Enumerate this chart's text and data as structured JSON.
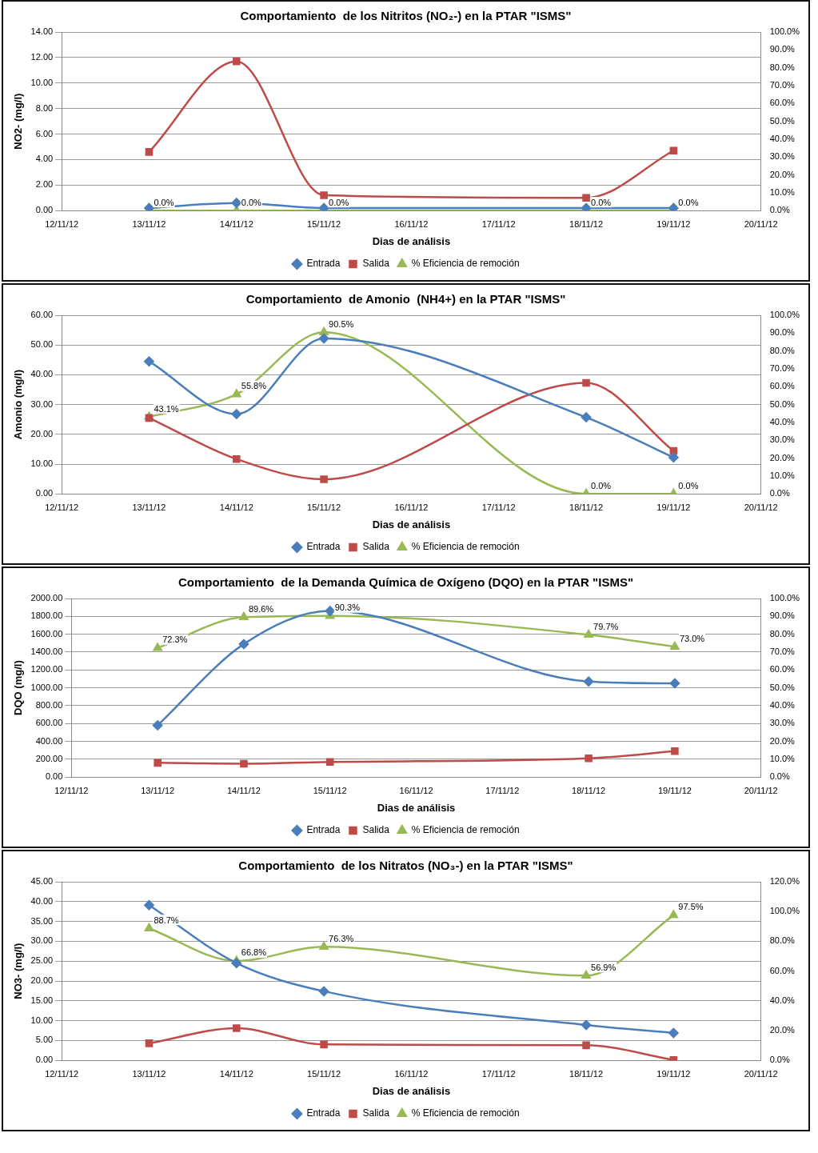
{
  "chart_data": [
    {
      "type": "line",
      "title": "Comportamiento  de los Nitritos (NO₂-) en la PTAR \"ISMS\"",
      "xlabel": "Dias de análisis",
      "ylabel": "NO2- (mg/l)",
      "categories": [
        "12/11/12",
        "13/11/12",
        "14/11/12",
        "15/11/12",
        "16/11/12",
        "17/11/12",
        "18/11/12",
        "19/11/12",
        "20/11/12"
      ],
      "series": [
        {
          "name": "Entrada",
          "color": "#4a7ebb",
          "marker": "diamond",
          "values": [
            null,
            0.2,
            0.6,
            0.2,
            null,
            null,
            0.2,
            0.2,
            null
          ]
        },
        {
          "name": "Salida",
          "color": "#be4b48",
          "marker": "square",
          "values": [
            null,
            4.6,
            11.7,
            1.2,
            null,
            null,
            1.0,
            4.7,
            null
          ]
        },
        {
          "name": "% Eficiencia de remoción",
          "color": "#98b954",
          "marker": "triangle",
          "axis": "y2",
          "values": [
            null,
            0,
            0,
            0,
            null,
            null,
            0,
            0,
            null
          ],
          "value_labels": [
            null,
            "0.0%",
            "0.0%",
            "0.0%",
            null,
            null,
            "0.0%",
            "0.0%",
            null
          ]
        }
      ],
      "ylim": [
        0,
        14
      ],
      "yticks": [
        {
          "value": 0,
          "label": "0.00"
        },
        {
          "value": 2,
          "label": "2.00"
        },
        {
          "value": 4,
          "label": "4.00"
        },
        {
          "value": 6,
          "label": "6.00"
        },
        {
          "value": 8,
          "label": "8.00"
        },
        {
          "value": 10,
          "label": "10.00"
        },
        {
          "value": 12,
          "label": "12.00"
        },
        {
          "value": 14,
          "label": "14.00"
        }
      ],
      "y2lim": [
        0,
        100
      ],
      "y2ticks": [
        {
          "value": 0,
          "label": "0.0%"
        },
        {
          "value": 10,
          "label": "10.0%"
        },
        {
          "value": 20,
          "label": "20.0%"
        },
        {
          "value": 30,
          "label": "30.0%"
        },
        {
          "value": 40,
          "label": "40.0%"
        },
        {
          "value": 50,
          "label": "50.0%"
        },
        {
          "value": 60,
          "label": "60.0%"
        },
        {
          "value": 70,
          "label": "70.0%"
        },
        {
          "value": 80,
          "label": "80.0%"
        },
        {
          "value": 90,
          "label": "90.0%"
        },
        {
          "value": 100,
          "label": "100.0%"
        }
      ],
      "grid": "y",
      "legend": "bottom"
    },
    {
      "type": "line",
      "title": "Comportamiento  de Amonio  (NH4+) en la PTAR \"ISMS\"",
      "xlabel": "Dias de análisis",
      "ylabel": "Amonio (mg/l)",
      "categories": [
        "12/11/12",
        "13/11/12",
        "14/11/12",
        "15/11/12",
        "16/11/12",
        "17/11/12",
        "18/11/12",
        "19/11/12",
        "20/11/12"
      ],
      "series": [
        {
          "name": "Entrada",
          "color": "#4a7ebb",
          "marker": "diamond",
          "values": [
            null,
            44.5,
            26.8,
            52.2,
            null,
            null,
            25.7,
            12.2,
            null
          ]
        },
        {
          "name": "Salida",
          "color": "#be4b48",
          "marker": "square",
          "values": [
            null,
            25.5,
            11.7,
            4.9,
            null,
            null,
            37.3,
            14.4,
            null
          ]
        },
        {
          "name": "% Eficiencia de remoción",
          "color": "#98b954",
          "marker": "triangle",
          "axis": "y2",
          "values": [
            null,
            43.1,
            55.8,
            90.5,
            null,
            null,
            0,
            0,
            null
          ],
          "value_labels": [
            null,
            "43.1%",
            "55.8%",
            "90.5%",
            null,
            null,
            "0.0%",
            "0.0%",
            null
          ]
        }
      ],
      "ylim": [
        0,
        60
      ],
      "yticks": [
        {
          "value": 0,
          "label": "0.00"
        },
        {
          "value": 10,
          "label": "10.00"
        },
        {
          "value": 20,
          "label": "20.00"
        },
        {
          "value": 30,
          "label": "30.00"
        },
        {
          "value": 40,
          "label": "40.00"
        },
        {
          "value": 50,
          "label": "50.00"
        },
        {
          "value": 60,
          "label": "60.00"
        }
      ],
      "y2lim": [
        0,
        100
      ],
      "y2ticks": [
        {
          "value": 0,
          "label": "0.0%"
        },
        {
          "value": 10,
          "label": "10.0%"
        },
        {
          "value": 20,
          "label": "20.0%"
        },
        {
          "value": 30,
          "label": "30.0%"
        },
        {
          "value": 40,
          "label": "40.0%"
        },
        {
          "value": 50,
          "label": "50.0%"
        },
        {
          "value": 60,
          "label": "60.0%"
        },
        {
          "value": 70,
          "label": "70.0%"
        },
        {
          "value": 80,
          "label": "80.0%"
        },
        {
          "value": 90,
          "label": "90.0%"
        },
        {
          "value": 100,
          "label": "100.0%"
        }
      ],
      "grid": "y",
      "legend": "bottom"
    },
    {
      "type": "line",
      "title": "Comportamiento  de la Demanda Química de Oxígeno (DQO) en la PTAR \"ISMS\"",
      "xlabel": "Dias de análisis",
      "ylabel": "DQO (mg/l)",
      "categories": [
        "12/11/12",
        "13/11/12",
        "14/11/12",
        "15/11/12",
        "16/11/12",
        "17/11/12",
        "18/11/12",
        "19/11/12",
        "20/11/12"
      ],
      "series": [
        {
          "name": "Entrada",
          "color": "#4a7ebb",
          "marker": "diamond",
          "values": [
            null,
            580,
            1490,
            1860,
            null,
            null,
            1070,
            1050,
            null
          ]
        },
        {
          "name": "Salida",
          "color": "#be4b48",
          "marker": "square",
          "values": [
            null,
            160,
            150,
            170,
            null,
            null,
            210,
            290,
            null
          ]
        },
        {
          "name": "% Eficiencia de remoción",
          "color": "#98b954",
          "marker": "triangle",
          "axis": "y2",
          "values": [
            null,
            72.3,
            89.6,
            90.3,
            null,
            null,
            79.7,
            73.0,
            null
          ],
          "value_labels": [
            null,
            "72.3%",
            "89.6%",
            "90.3%",
            null,
            null,
            "79.7%",
            "73.0%",
            null
          ]
        }
      ],
      "ylim": [
        0,
        2000
      ],
      "yticks": [
        {
          "value": 0,
          "label": "0.00"
        },
        {
          "value": 200,
          "label": "200.00"
        },
        {
          "value": 400,
          "label": "400.00"
        },
        {
          "value": 600,
          "label": "600.00"
        },
        {
          "value": 800,
          "label": "800.00"
        },
        {
          "value": 1000,
          "label": "1000.00"
        },
        {
          "value": 1200,
          "label": "1200.00"
        },
        {
          "value": 1400,
          "label": "1400.00"
        },
        {
          "value": 1600,
          "label": "1600.00"
        },
        {
          "value": 1800,
          "label": "1800.00"
        },
        {
          "value": 2000,
          "label": "2000.00"
        }
      ],
      "y2lim": [
        0,
        100
      ],
      "y2ticks": [
        {
          "value": 0,
          "label": "0.0%"
        },
        {
          "value": 10,
          "label": "10.0%"
        },
        {
          "value": 20,
          "label": "20.0%"
        },
        {
          "value": 30,
          "label": "30.0%"
        },
        {
          "value": 40,
          "label": "40.0%"
        },
        {
          "value": 50,
          "label": "50.0%"
        },
        {
          "value": 60,
          "label": "60.0%"
        },
        {
          "value": 70,
          "label": "70.0%"
        },
        {
          "value": 80,
          "label": "80.0%"
        },
        {
          "value": 90,
          "label": "90.0%"
        },
        {
          "value": 100,
          "label": "100.0%"
        }
      ],
      "grid": "y",
      "legend": "bottom"
    },
    {
      "type": "line",
      "title": "Comportamiento  de los Nitratos (NO₃-) en la PTAR \"ISMS\"",
      "xlabel": "Dias de análisis",
      "ylabel": "NO3- (mg/l)",
      "categories": [
        "12/11/12",
        "13/11/12",
        "14/11/12",
        "15/11/12",
        "16/11/12",
        "17/11/12",
        "18/11/12",
        "19/11/12",
        "20/11/12"
      ],
      "series": [
        {
          "name": "Entrada",
          "color": "#4a7ebb",
          "marker": "diamond",
          "values": [
            null,
            39.1,
            24.5,
            17.4,
            null,
            null,
            8.9,
            6.9,
            null
          ]
        },
        {
          "name": "Salida",
          "color": "#be4b48",
          "marker": "square",
          "values": [
            null,
            4.3,
            8.1,
            4.0,
            null,
            null,
            3.8,
            0.1,
            null
          ]
        },
        {
          "name": "% Eficiencia de remoción",
          "color": "#98b954",
          "marker": "triangle",
          "axis": "y2",
          "values": [
            null,
            88.7,
            66.8,
            76.3,
            null,
            null,
            56.9,
            97.5,
            null
          ],
          "value_labels": [
            null,
            "88.7%",
            "66.8%",
            "76.3%",
            null,
            null,
            "56.9%",
            "97.5%",
            null
          ]
        }
      ],
      "ylim": [
        0,
        45
      ],
      "yticks": [
        {
          "value": 0,
          "label": "0.00"
        },
        {
          "value": 5,
          "label": "5.00"
        },
        {
          "value": 10,
          "label": "10.00"
        },
        {
          "value": 15,
          "label": "15.00"
        },
        {
          "value": 20,
          "label": "20.00"
        },
        {
          "value": 25,
          "label": "25.00"
        },
        {
          "value": 30,
          "label": "30.00"
        },
        {
          "value": 35,
          "label": "35.00"
        },
        {
          "value": 40,
          "label": "40.00"
        },
        {
          "value": 45,
          "label": "45.00"
        }
      ],
      "y2lim": [
        0,
        120
      ],
      "y2ticks": [
        {
          "value": 0,
          "label": "0.0%"
        },
        {
          "value": 20,
          "label": "20.0%"
        },
        {
          "value": 40,
          "label": "40.0%"
        },
        {
          "value": 60,
          "label": "60.0%"
        },
        {
          "value": 80,
          "label": "80.0%"
        },
        {
          "value": 100,
          "label": "100.0%"
        },
        {
          "value": 120,
          "label": "120.0%"
        }
      ],
      "grid": "y",
      "legend": "bottom"
    }
  ]
}
